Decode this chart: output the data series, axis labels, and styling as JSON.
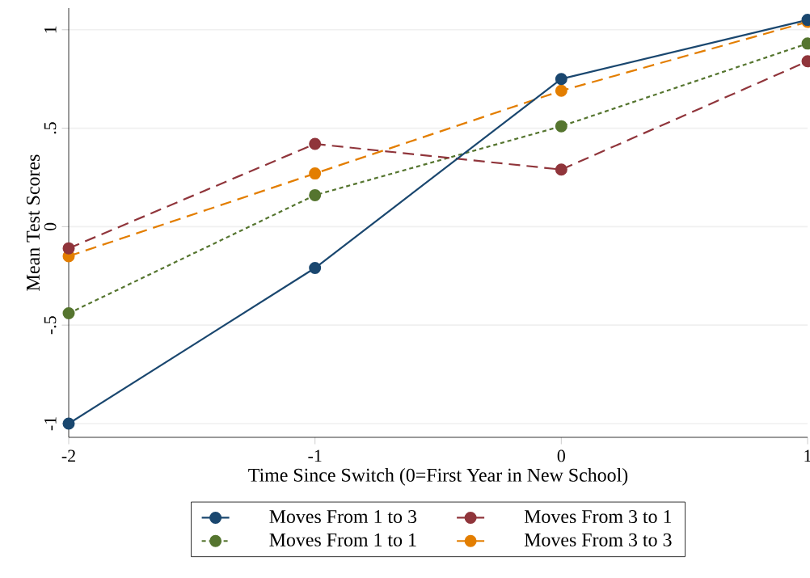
{
  "chart_data": {
    "type": "line",
    "xlabel": "Time Since Switch (0=First Year in New School)",
    "ylabel": "Mean Test Scores",
    "x": [
      -2,
      -1,
      0,
      1
    ],
    "series": [
      {
        "name": "Moves From 1 to 3",
        "color": "#1a476f",
        "line_style": "solid",
        "values": [
          -1.0,
          -0.21,
          0.75,
          1.05
        ]
      },
      {
        "name": "Moves From 3 to 1",
        "color": "#90353b",
        "line_style": "dashed",
        "values": [
          -0.11,
          0.42,
          0.29,
          0.84
        ]
      },
      {
        "name": "Moves From 1 to 1",
        "color": "#55752f",
        "line_style": "dotted",
        "values": [
          -0.44,
          0.16,
          0.51,
          0.93
        ]
      },
      {
        "name": "Moves From 3 to 3",
        "color": "#e37e00",
        "line_style": "dashed",
        "values": [
          -0.15,
          0.27,
          0.69,
          1.04
        ]
      }
    ],
    "xlim": [
      -2,
      1
    ],
    "ylim": [
      -1.07,
      1.11
    ],
    "xticks": [
      -2,
      -1,
      0,
      1
    ],
    "yticks": [
      {
        "value": -1,
        "label": "-1"
      },
      {
        "value": -0.5,
        "label": "-.5"
      },
      {
        "value": 0,
        "label": "0"
      },
      {
        "value": 0.5,
        "label": ".5"
      },
      {
        "value": 1,
        "label": "1"
      }
    ],
    "grid": "y",
    "legend": "bottom",
    "marker": "circle"
  }
}
